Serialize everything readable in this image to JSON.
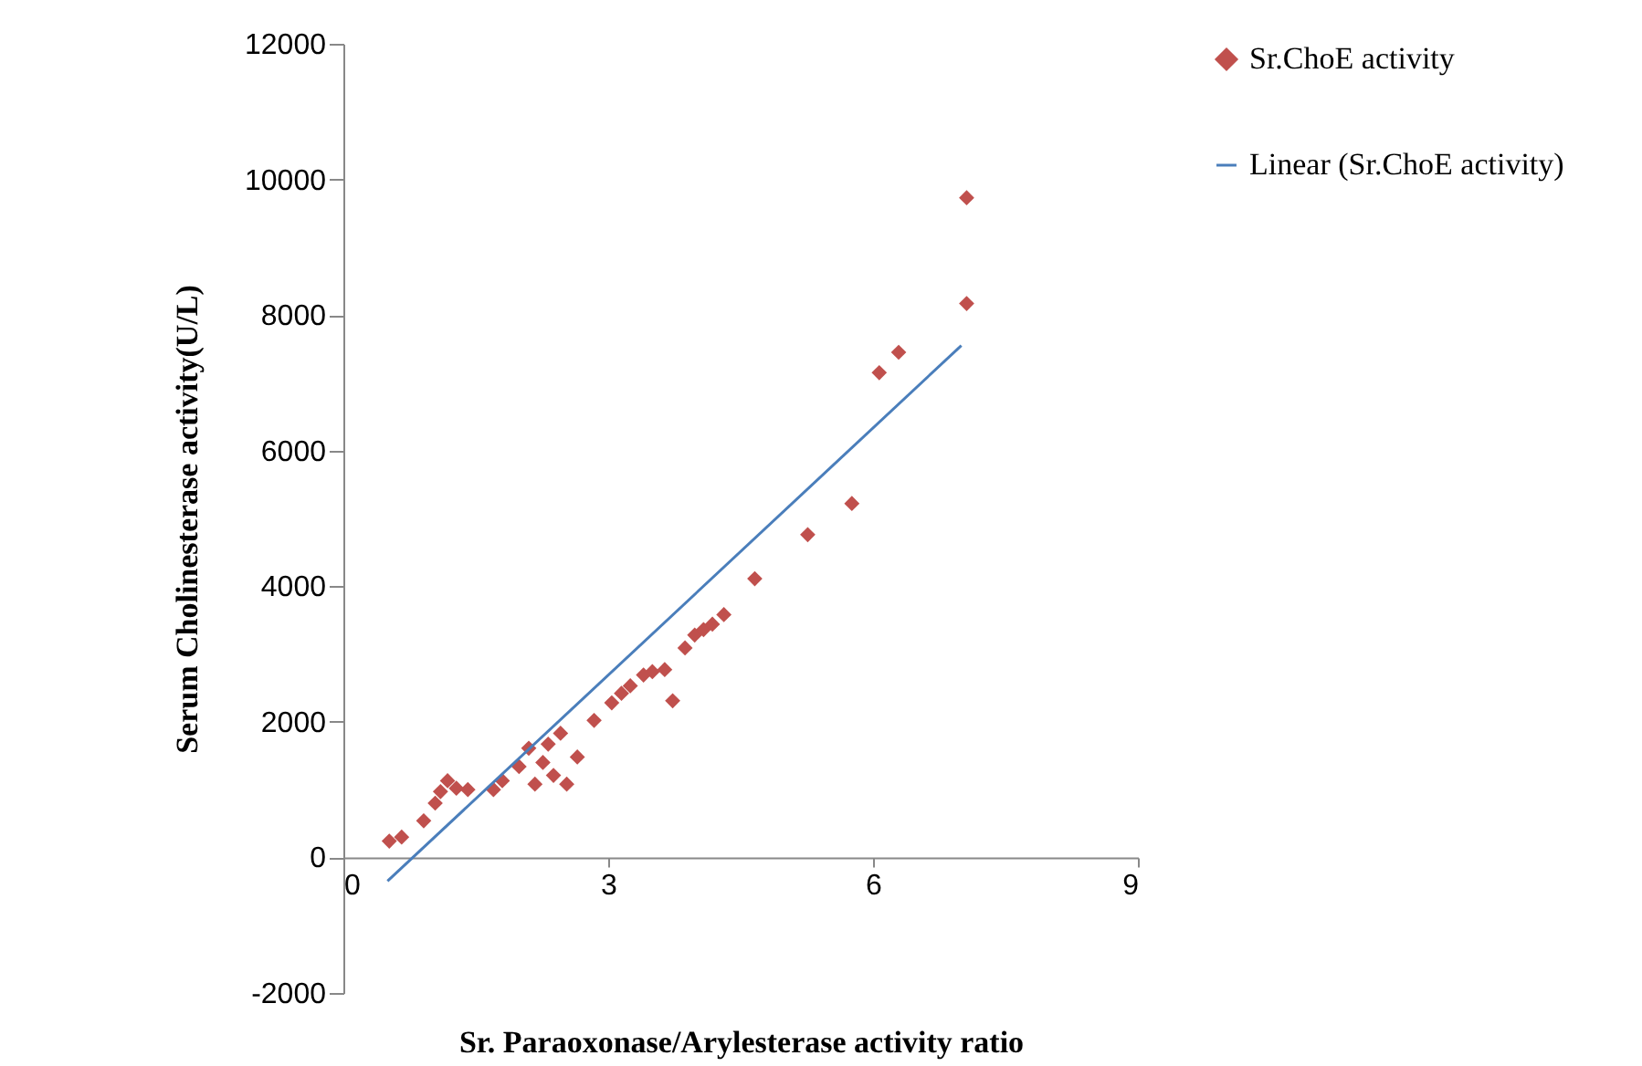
{
  "chart_data": {
    "type": "scatter",
    "xlabel": "Sr. Paraoxonase/Arylesterase activity ratio",
    "ylabel": "Serum Cholinesterase activity(U/L)",
    "xlim": [
      0,
      9
    ],
    "xticks": [
      0,
      3,
      6,
      9
    ],
    "ylim": [
      -2000,
      12000
    ],
    "yticks": [
      -2000,
      0,
      2000,
      4000,
      6000,
      8000,
      10000,
      12000
    ],
    "grid": false,
    "legend": "right",
    "series": [
      {
        "name": "Sr.ChoE activity",
        "marker": "diamond",
        "color": "#c0504d",
        "x": [
          0.52,
          0.66,
          0.91,
          1.04,
          1.1,
          1.18,
          1.28,
          1.41,
          1.7,
          1.8,
          1.99,
          2.1,
          2.17,
          2.26,
          2.32,
          2.38,
          2.46,
          2.53,
          2.65,
          2.84,
          3.04,
          3.15,
          3.25,
          3.4,
          3.5,
          3.64,
          3.73,
          3.87,
          3.98,
          4.08,
          4.18,
          4.31,
          4.66,
          5.26,
          5.76,
          6.07,
          6.29,
          7.06,
          7.06
        ],
        "values": [
          240,
          300,
          540,
          800,
          970,
          1130,
          1020,
          1000,
          1000,
          1130,
          1340,
          1610,
          1080,
          1400,
          1670,
          1210,
          1830,
          1080,
          1480,
          2020,
          2280,
          2420,
          2530,
          2690,
          2740,
          2770,
          2310,
          3090,
          3280,
          3360,
          3440,
          3580,
          4110,
          4760,
          5220,
          7150,
          7450,
          8170,
          9730
        ]
      },
      {
        "name": "Linear (Sr.ChoE activity)",
        "type": "line",
        "color": "#4a7ebb",
        "x": [
          0.5,
          7.0
        ],
        "values": [
          -350,
          7550
        ]
      }
    ]
  }
}
